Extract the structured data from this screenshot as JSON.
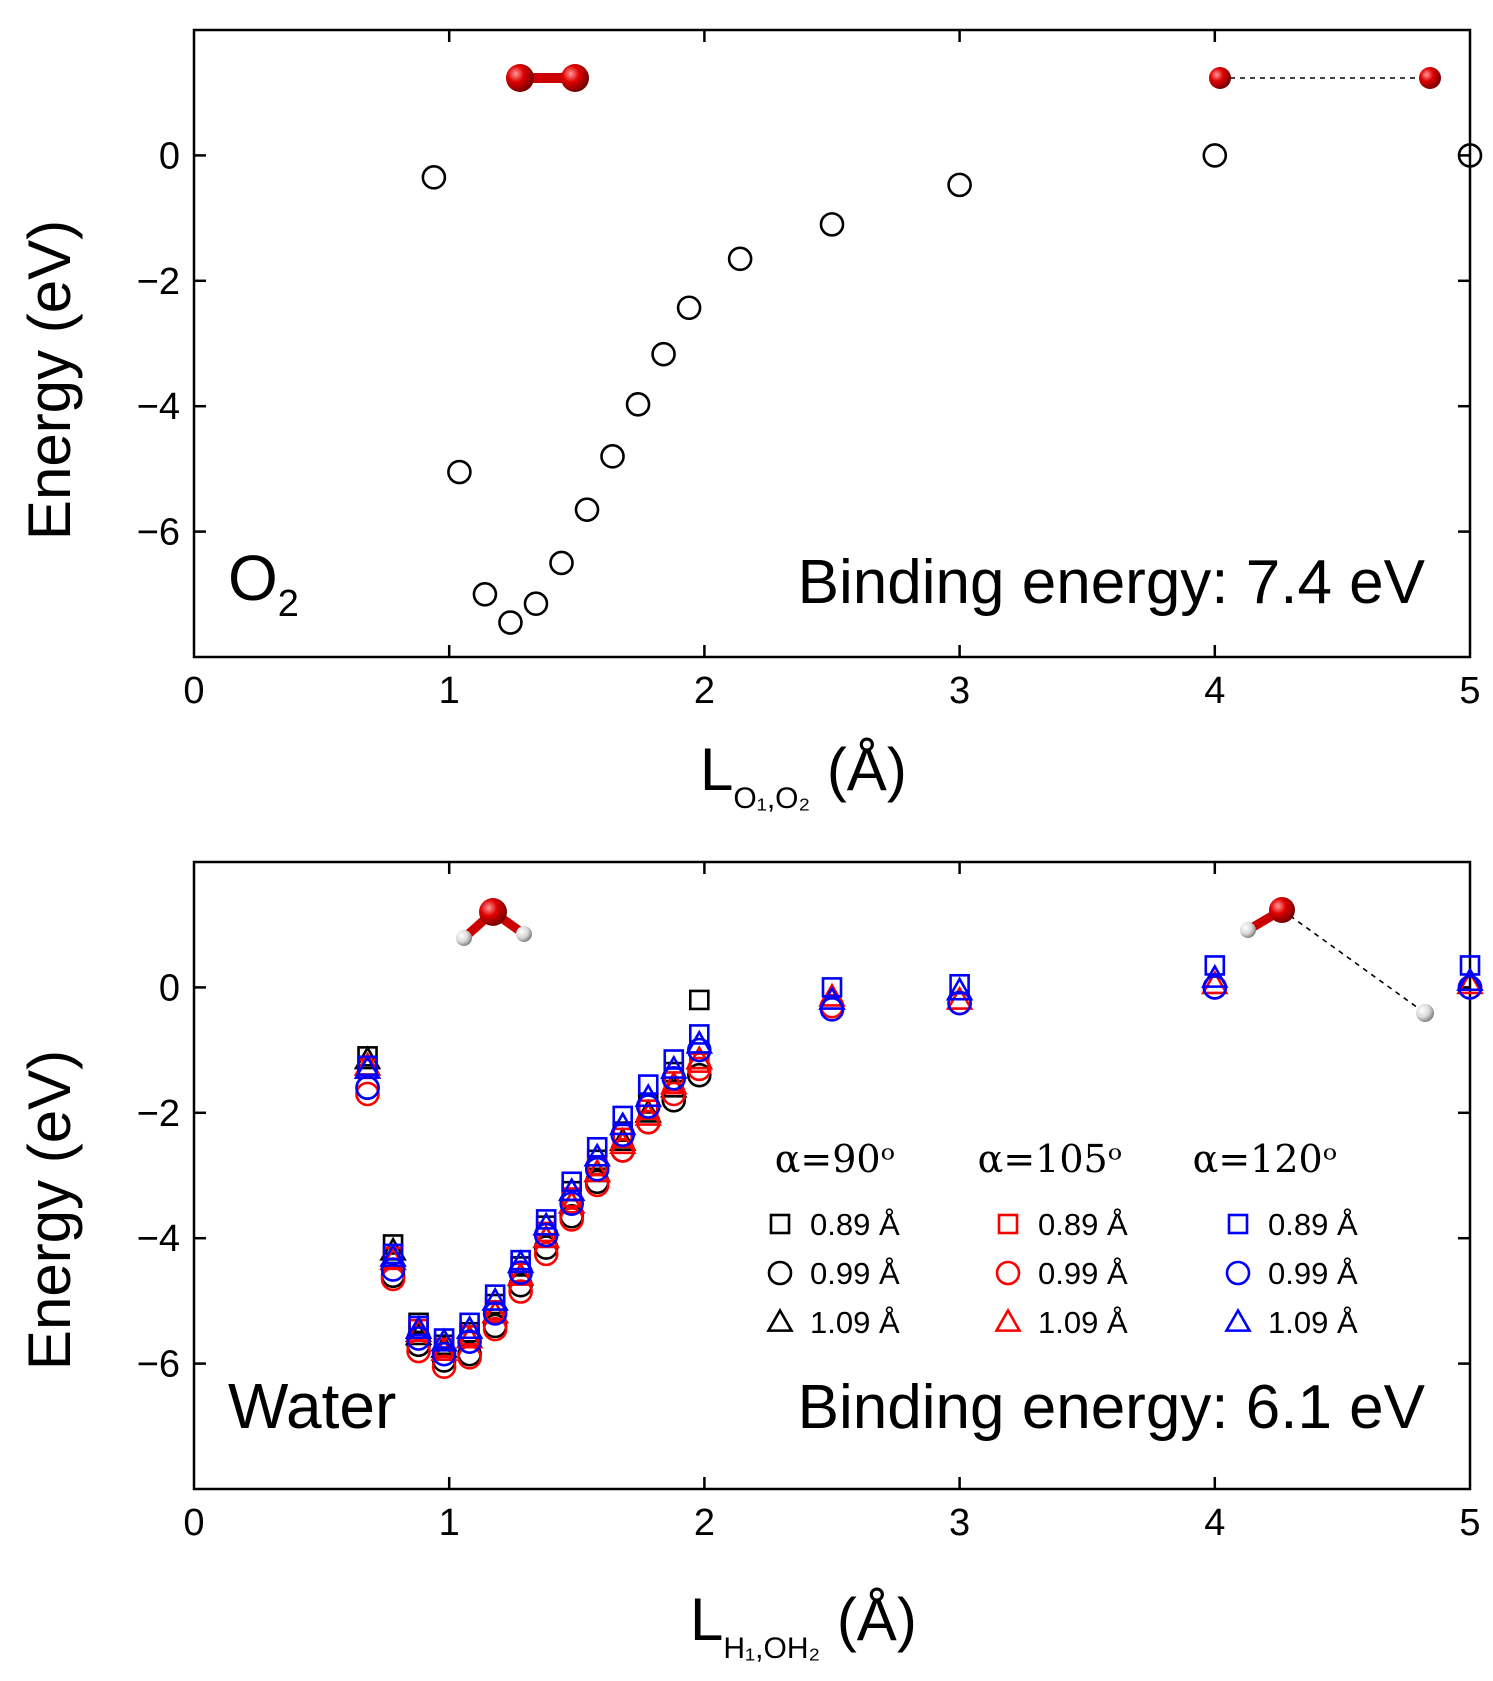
{
  "chart_data": [
    {
      "type": "scatter",
      "panel": "top",
      "title": "",
      "panel_label": "O",
      "panel_label_sub": "2",
      "binding_text": "Binding energy: 7.4 eV",
      "ylabel": "Energy (eV)",
      "xlabel_main": "L",
      "xlabel_sub": "O₁,O₂",
      "xlabel_unit": " (Å)",
      "xlim": [
        0,
        5
      ],
      "ylim": [
        -8,
        2
      ],
      "x_ticks": [
        "0",
        "1",
        "2",
        "3",
        "4",
        "5"
      ],
      "y_ticks": [
        "0",
        "−2",
        "−4",
        "−6"
      ],
      "y_tick_values": [
        0,
        -2,
        -4,
        -6
      ],
      "series": [
        {
          "name": "O2",
          "color": "#000000",
          "marker": "circle",
          "x": [
            0.94,
            1.04,
            1.14,
            1.24,
            1.34,
            1.44,
            1.54,
            1.64,
            1.74,
            1.84,
            1.94,
            2.14,
            2.5,
            3.0,
            4.0,
            5.0
          ],
          "y": [
            -0.35,
            -5.05,
            -7.0,
            -7.45,
            -7.15,
            -6.5,
            -5.65,
            -4.8,
            -3.97,
            -3.17,
            -2.43,
            -1.65,
            -1.1,
            -0.47,
            0.0,
            0.0
          ]
        }
      ]
    },
    {
      "type": "scatter",
      "panel": "bottom",
      "title": "",
      "panel_label": "Water",
      "binding_text": "Binding energy: 6.1 eV",
      "ylabel": "Energy (eV)",
      "xlabel_main": "L",
      "xlabel_sub": "H₁,OH₂",
      "xlabel_unit": " (Å)",
      "xlim": [
        0,
        5
      ],
      "ylim": [
        -8,
        2
      ],
      "x_ticks": [
        "0",
        "1",
        "2",
        "3",
        "4",
        "5"
      ],
      "y_ticks": [
        "0",
        "−2",
        "−4",
        "−6"
      ],
      "y_tick_values": [
        0,
        -2,
        -4,
        -6
      ],
      "x": [
        0.68,
        0.78,
        0.88,
        0.98,
        1.08,
        1.18,
        1.28,
        1.38,
        1.48,
        1.58,
        1.68,
        1.78,
        1.88,
        1.98
      ],
      "x_far": [
        2.5,
        3.0,
        4.0,
        5.0
      ],
      "legend_headers": [
        "α=90ᵒ",
        "α=105ᵒ",
        "α=120ᵒ"
      ],
      "legend_labels": [
        "0.89 Å",
        "0.99 Å",
        "1.09 Å"
      ],
      "series": [
        {
          "name": "α=90°, 0.89 Å",
          "color": "#000000",
          "marker": "square",
          "y": [
            -1.1,
            -4.1,
            -5.35,
            -5.7,
            -5.5,
            -5.05,
            -4.45,
            -3.8,
            -3.25,
            -2.75,
            -2.3,
            -1.85,
            -1.35,
            -0.2
          ],
          "y_far": []
        },
        {
          "name": "α=90°, 0.99 Å",
          "color": "#000000",
          "marker": "circle",
          "y": [
            -1.6,
            -4.6,
            -5.7,
            -5.95,
            -5.85,
            -5.4,
            -4.75,
            -4.15,
            -3.65,
            -3.1,
            -2.6,
            -2.15,
            -1.8,
            -1.4
          ],
          "y_far": []
        },
        {
          "name": "α=90°, 1.09 Å",
          "color": "#000000",
          "marker": "triangle",
          "y": [
            -1.15,
            -4.2,
            -5.55,
            -5.75,
            -5.6,
            -5.2,
            -4.6,
            -4.0,
            -3.45,
            -2.95,
            -2.45,
            -2.0,
            -1.6,
            -1.15
          ],
          "y_far": []
        },
        {
          "name": "α=105°, 0.89 Å",
          "color": "#ff0000",
          "marker": "square",
          "y": [
            -1.3,
            -4.3,
            -5.45,
            -5.75,
            -5.55,
            -5.15,
            -4.55,
            -3.9,
            -3.35,
            -2.85,
            -2.4,
            -1.95,
            -1.5,
            -1.2
          ],
          "y_far": []
        },
        {
          "name": "α=105°, 0.99 Å",
          "color": "#ff0000",
          "marker": "circle",
          "y": [
            -1.7,
            -4.65,
            -5.8,
            -6.05,
            -5.9,
            -5.45,
            -4.85,
            -4.25,
            -3.7,
            -3.15,
            -2.6,
            -2.15,
            -1.7,
            -1.3
          ],
          "y_far": [
            -0.3,
            -0.25,
            0.0,
            0.0
          ]
        },
        {
          "name": "α=105°, 1.09 Å",
          "color": "#ff0000",
          "marker": "triangle",
          "y": [
            -1.25,
            -4.35,
            -5.5,
            -5.8,
            -5.6,
            -5.2,
            -4.6,
            -4.0,
            -3.45,
            -2.95,
            -2.5,
            -2.05,
            -1.55,
            -1.15
          ],
          "y_far": [
            -0.15,
            -0.2,
            0.05,
            0.05
          ]
        },
        {
          "name": "α=120°, 0.89 Å",
          "color": "#0000ff",
          "marker": "square",
          "y": [
            -1.25,
            -4.25,
            -5.4,
            -5.6,
            -5.35,
            -4.9,
            -4.35,
            -3.7,
            -3.1,
            -2.55,
            -2.05,
            -1.55,
            -1.15,
            -0.75
          ],
          "y_far": [
            0.0,
            0.05,
            0.35,
            0.35
          ]
        },
        {
          "name": "α=120°, 0.99 Å",
          "color": "#0000ff",
          "marker": "circle",
          "y": [
            -1.6,
            -4.5,
            -5.6,
            -5.85,
            -5.65,
            -5.2,
            -4.55,
            -3.95,
            -3.45,
            -2.9,
            -2.35,
            -1.9,
            -1.45,
            -1.0
          ],
          "y_far": [
            -0.35,
            -0.25,
            0.0,
            0.0
          ]
        },
        {
          "name": "α=120°, 1.09 Å",
          "color": "#0000ff",
          "marker": "triangle",
          "y": [
            -1.3,
            -4.3,
            -5.45,
            -5.65,
            -5.45,
            -5.0,
            -4.4,
            -3.8,
            -3.25,
            -2.7,
            -2.2,
            -1.75,
            -1.3,
            -0.9
          ],
          "y_far": [
            -0.2,
            -0.05,
            0.15,
            0.1
          ]
        }
      ]
    }
  ],
  "colors": {
    "oxygen": "#e00000",
    "hydrogen": "#eeeeee",
    "black": "#000000",
    "red": "#ff0000",
    "blue": "#0000ff"
  }
}
